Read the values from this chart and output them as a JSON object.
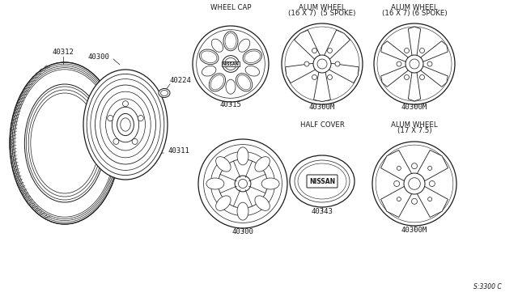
{
  "bg_color": "#ffffff",
  "line_color": "#1a1a1a",
  "diagram_ref": "S:3300 C",
  "labels": {
    "tire": "40312",
    "wheel": "40300",
    "lug_nut": "40224",
    "valve": "40311",
    "wheel_cap": "40315",
    "alum_5spoke": "40300M",
    "alum_6spoke": "40300M",
    "half_cover_wheel": "40300",
    "half_cover": "40343",
    "alum_4spoke": "40300M"
  },
  "section_titles": {
    "wheel_cap": "WHEEL CAP",
    "alum_5spoke_l1": "ALUM WHEEL",
    "alum_5spoke_l2": "(16 X 7)  (5 SPOKE)",
    "alum_6spoke_l1": "ALUM WHEEL",
    "alum_6spoke_l2": "(16 X 7) (6 SPOKE)",
    "half_cover": "HALF COVER",
    "alum_4spoke_l1": "ALUM WHEEL",
    "alum_4spoke_l2": "(17 X 7.5)"
  }
}
